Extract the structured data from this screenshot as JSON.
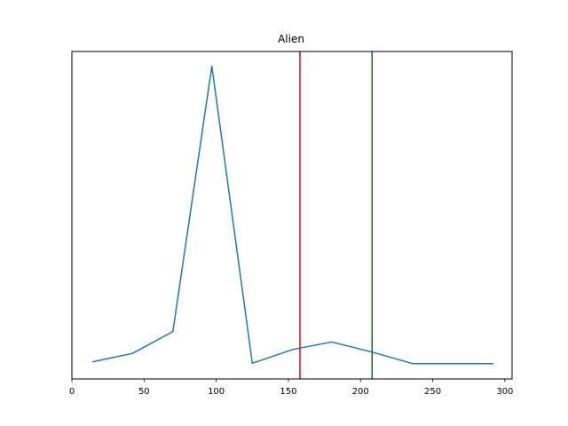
{
  "chart_data": {
    "type": "line",
    "title": "Alien",
    "xlabel": "",
    "ylabel": "",
    "xlim": [
      0,
      305
    ],
    "ylim": [
      0,
      1
    ],
    "xticks": [
      0,
      50,
      100,
      150,
      200,
      250,
      300
    ],
    "xtick_labels": [
      "0",
      "50",
      "100",
      "150",
      "200",
      "250",
      "300"
    ],
    "yticks_visible": false,
    "grid": false,
    "series": [
      {
        "color": "#1f77b4",
        "x": [
          14,
          42,
          70,
          97,
          125,
          153,
          180,
          208,
          236,
          264,
          292
        ],
        "y": [
          0.052,
          0.078,
          0.145,
          0.955,
          0.048,
          0.09,
          0.113,
          0.082,
          0.047,
          0.047,
          0.047
        ]
      }
    ],
    "vlines": [
      {
        "x": 158,
        "color": "#ff0000"
      },
      {
        "x": 208,
        "color": "#008000"
      }
    ]
  }
}
